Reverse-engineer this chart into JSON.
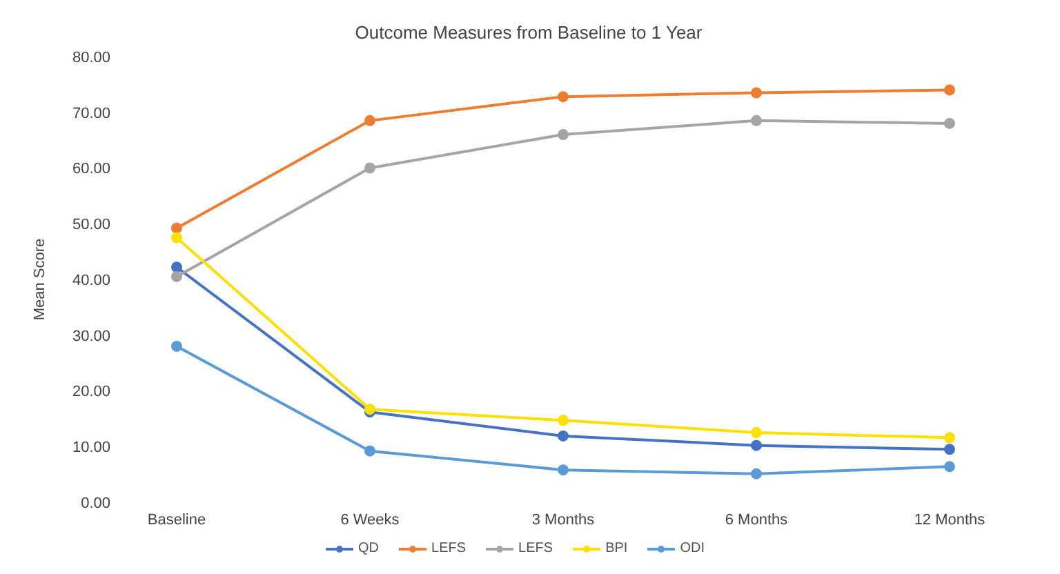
{
  "chart_data": {
    "type": "line",
    "title": "Outcome Measures from Baseline to 1 Year",
    "ylabel": "Mean Score",
    "categories": [
      "Baseline",
      "6 Weeks",
      "3 Months",
      "6 Months",
      "12 Months"
    ],
    "series": [
      {
        "name": "QD",
        "color": "#4472c4",
        "values": [
          42.2,
          16.2,
          11.9,
          10.2,
          9.5
        ]
      },
      {
        "name": "LEFS",
        "color": "#ed7d31",
        "values": [
          49.2,
          68.5,
          72.8,
          73.5,
          74.0
        ]
      },
      {
        "name": "LEFS",
        "color": "#a5a5a5",
        "values": [
          40.5,
          60.0,
          66.0,
          68.5,
          68.0
        ]
      },
      {
        "name": "BPI",
        "color": "#ffe000",
        "values": [
          47.5,
          16.7,
          14.7,
          12.5,
          11.6
        ]
      },
      {
        "name": "ODI",
        "color": "#5b9bd5",
        "values": [
          28.0,
          9.2,
          5.8,
          5.1,
          6.4
        ]
      }
    ],
    "ylim": [
      0,
      80
    ],
    "yticks": [
      {
        "value": 0,
        "label": "0.00"
      },
      {
        "value": 10,
        "label": "10.00"
      },
      {
        "value": 20,
        "label": "20.00"
      },
      {
        "value": 30,
        "label": "30.00"
      },
      {
        "value": 40,
        "label": "40.00"
      },
      {
        "value": 50,
        "label": "50.00"
      },
      {
        "value": 60,
        "label": "60.00"
      },
      {
        "value": 70,
        "label": "70.00"
      },
      {
        "value": 80,
        "label": "80.00"
      }
    ],
    "grid": false,
    "legend": "bottom",
    "marker": "circle",
    "line_style": "solid"
  }
}
